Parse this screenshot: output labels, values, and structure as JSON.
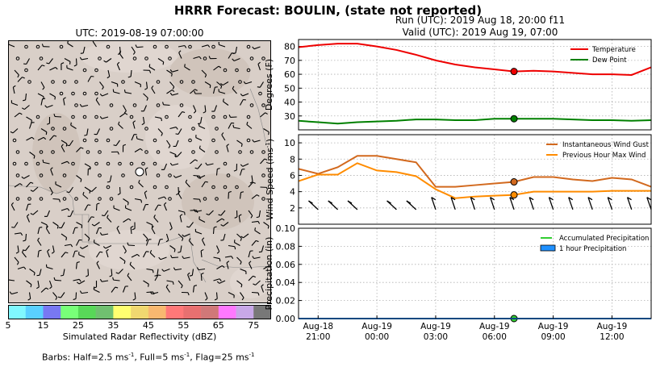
{
  "figure": {
    "title": "HRRR Forecast: BOULIN, (state not reported)",
    "run_line": "Run (UTC): 2019 Aug 18, 20:00 f11",
    "valid_line": "Valid (UTC): 2019 Aug 19, 07:00",
    "barb_legend_prefix": "Barbs: Half=2.5 ms",
    "barb_legend_mid1": ", Full=5 ms",
    "barb_legend_mid2": ", Flag=25 ms",
    "barb_legend_exp": "-1"
  },
  "map": {
    "title": "UTC: 2019-08-19 07:00:00",
    "colorbar_label": "Simulated Radar Reflectivity (dBZ)",
    "colorbar_ticks": [
      "5",
      "15",
      "25",
      "35",
      "45",
      "55",
      "65",
      "75"
    ],
    "colorbar_colors": [
      "#80f8ff",
      "#5ad0ff",
      "#7878f2",
      "#78ff78",
      "#58d858",
      "#70c070",
      "#ffff70",
      "#f0d870",
      "#f8b870",
      "#ff7878",
      "#e87070",
      "#d07878",
      "#ff78ff",
      "#c8a8e8",
      "#787878"
    ],
    "terrain_color": "#d9cfc8",
    "marker_symbol": "open-circle"
  },
  "chart_data": [
    {
      "type": "line",
      "ylabel": "Degrees (F)",
      "ylim": [
        20,
        85
      ],
      "yticks": [
        "30",
        "40",
        "50",
        "60",
        "70",
        "80"
      ],
      "x_hours_utc": [
        20,
        21,
        22,
        23,
        24,
        25,
        26,
        27,
        28,
        29,
        30,
        31,
        32,
        33,
        34,
        35,
        36,
        37,
        38
      ],
      "series": [
        {
          "name": "Temperature",
          "color": "#ee0000",
          "values": [
            79.5,
            81,
            82,
            82,
            80,
            77.5,
            74,
            70,
            67,
            65,
            63.5,
            62,
            62.5,
            62,
            61,
            60,
            60,
            59.5,
            65
          ]
        },
        {
          "name": "Dew Point",
          "color": "#008000",
          "values": [
            26.5,
            25.5,
            24.5,
            25.5,
            26,
            26.5,
            27.5,
            27.5,
            27,
            27,
            28,
            28,
            28,
            28,
            27.5,
            27,
            27,
            26.5,
            27
          ]
        }
      ],
      "marker_hour": 31,
      "legend": "top-right",
      "grid": true
    },
    {
      "type": "line",
      "ylabel_base": "Wind Speed (ms",
      "ylabel_exp": "-1",
      "ylim": [
        0,
        11
      ],
      "yticks": [
        "2",
        "4",
        "6",
        "8",
        "10"
      ],
      "x_hours_utc": [
        20,
        21,
        22,
        23,
        24,
        25,
        26,
        27,
        28,
        29,
        30,
        31,
        32,
        33,
        34,
        35,
        36,
        37,
        38
      ],
      "series": [
        {
          "name": "Instantaneous Wind Gust",
          "color": "#d2691e",
          "values": [
            6.8,
            6.2,
            7,
            8.4,
            8.4,
            8,
            7.6,
            4.6,
            4.6,
            4.8,
            5,
            5.2,
            5.8,
            5.8,
            5.5,
            5.3,
            5.7,
            5.5,
            4.6
          ]
        },
        {
          "name": "Previous Hour Max Wind",
          "color": "#ff8c00",
          "values": [
            5.3,
            6.1,
            6.1,
            7.5,
            6.6,
            6.4,
            5.9,
            4.3,
            3.2,
            3.4,
            3.5,
            3.6,
            4,
            4,
            4,
            4,
            4.1,
            4.1,
            4.1
          ]
        }
      ],
      "marker_hour": 31,
      "legend": "top-right",
      "grid": true
    },
    {
      "type": "line",
      "ylabel": "Precipitation (in)",
      "ylim": [
        0,
        0.1
      ],
      "yticks": [
        "0.00",
        "0.02",
        "0.04",
        "0.06",
        "0.08",
        "0.10"
      ],
      "x_hours_utc": [
        20,
        21,
        22,
        23,
        24,
        25,
        26,
        27,
        28,
        29,
        30,
        31,
        32,
        33,
        34,
        35,
        36,
        37,
        38
      ],
      "series": [
        {
          "name": "Accumulated Precipitation",
          "color": "#32cd32",
          "values": [
            0,
            0,
            0,
            0,
            0,
            0,
            0,
            0,
            0,
            0,
            0,
            0,
            0,
            0,
            0,
            0,
            0,
            0,
            0
          ]
        },
        {
          "name": "1 hour Precipitation",
          "color": "#1e90ff",
          "values": [
            0,
            0,
            0,
            0,
            0,
            0,
            0,
            0,
            0,
            0,
            0,
            0,
            0,
            0,
            0,
            0,
            0,
            0,
            0
          ]
        }
      ],
      "marker_hour": 31,
      "legend": "top-right",
      "grid": true,
      "xtick_hours": [
        21,
        24,
        27,
        30,
        33,
        36
      ],
      "xtick_labels_top": [
        "Aug-18",
        "Aug-19",
        "Aug-19",
        "Aug-19",
        "Aug-19",
        "Aug-19"
      ],
      "xtick_labels_bottom": [
        "21:00",
        "00:00",
        "03:00",
        "06:00",
        "09:00",
        "12:00"
      ]
    }
  ]
}
